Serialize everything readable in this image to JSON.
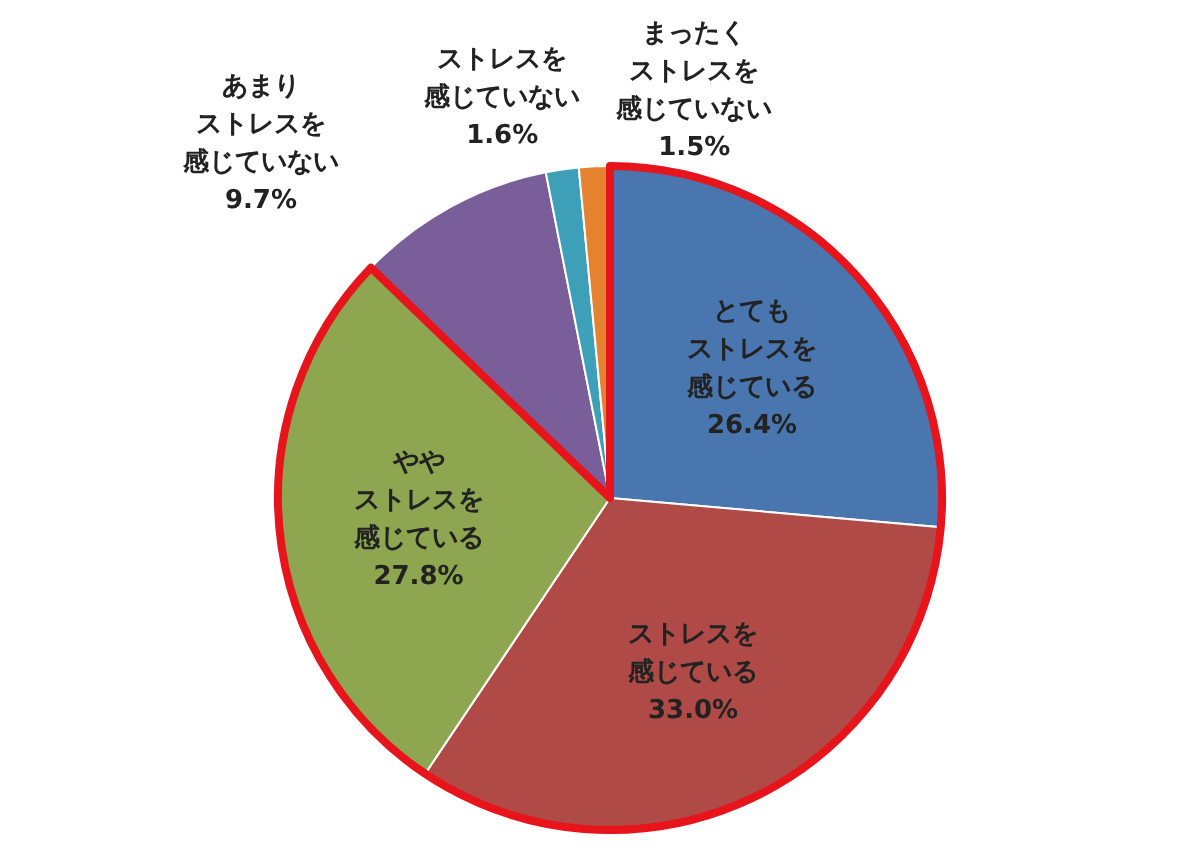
{
  "chart_data": {
    "type": "pie",
    "categories": [
      "とてもストレスを感じている",
      "ストレスを感じている",
      "ややストレスを感じている",
      "あまりストレスを感じていない",
      "ストレスを感じていない",
      "まったくストレスを感じていない"
    ],
    "values": [
      26.4,
      33.0,
      27.8,
      9.7,
      1.6,
      1.5
    ],
    "value_labels": [
      "26.4%",
      "33.0%",
      "27.8%",
      "9.7%",
      "1.6%",
      "1.5%"
    ],
    "colors": [
      "#4a76b0",
      "#b04a47",
      "#8da64f",
      "#7a5e9a",
      "#3ea0b8",
      "#e4822f"
    ]
  }
}
